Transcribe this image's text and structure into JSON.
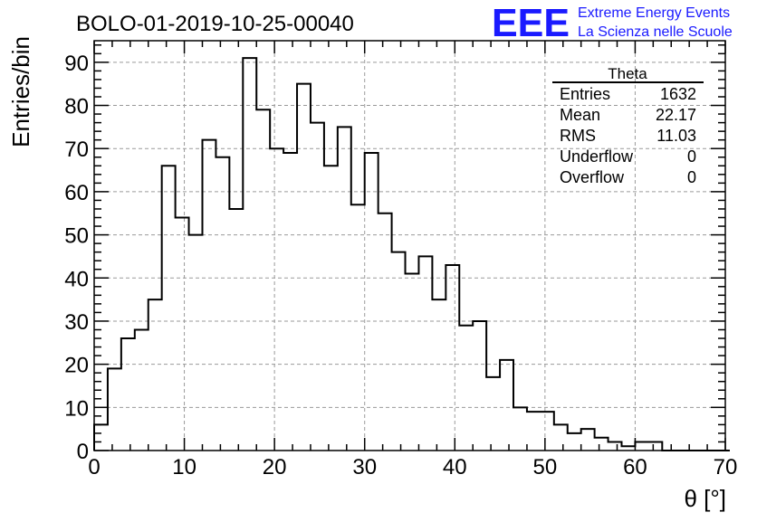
{
  "title": "BOLO-01-2019-10-25-00040",
  "logo": {
    "letters": "EEE",
    "line1": "Extreme Energy Events",
    "line2": "La Scienza nelle Scuole",
    "color": "#1a1aff"
  },
  "stats": {
    "name": "Theta",
    "rows": [
      {
        "label": "Entries",
        "value": "1632"
      },
      {
        "label": "Mean",
        "value": "22.17"
      },
      {
        "label": "RMS",
        "value": "11.03"
      },
      {
        "label": "Underflow",
        "value": "0"
      },
      {
        "label": "Overflow",
        "value": "0"
      }
    ]
  },
  "chart_data": {
    "type": "bar",
    "style": "step-histogram",
    "title": "BOLO-01-2019-10-25-00040",
    "xlabel": "θ [°]",
    "ylabel": "Entries/bin",
    "xlim": [
      0,
      70
    ],
    "ylim": [
      0,
      95
    ],
    "bin_width": 1.5,
    "x_ticks": [
      "0",
      "10",
      "20",
      "30",
      "40",
      "50",
      "60",
      "70"
    ],
    "y_ticks": [
      "0",
      "10",
      "20",
      "30",
      "40",
      "50",
      "60",
      "70",
      "80",
      "90"
    ],
    "grid": true,
    "values": [
      6,
      19,
      26,
      28,
      35,
      66,
      54,
      50,
      72,
      68,
      56,
      91,
      79,
      70,
      69,
      85,
      76,
      66,
      75,
      57,
      69,
      55,
      46,
      41,
      45,
      35,
      43,
      29,
      30,
      17,
      21,
      10,
      9,
      9,
      6,
      4,
      5,
      3,
      2,
      1,
      2,
      2,
      0,
      0,
      0,
      0,
      0
    ]
  }
}
